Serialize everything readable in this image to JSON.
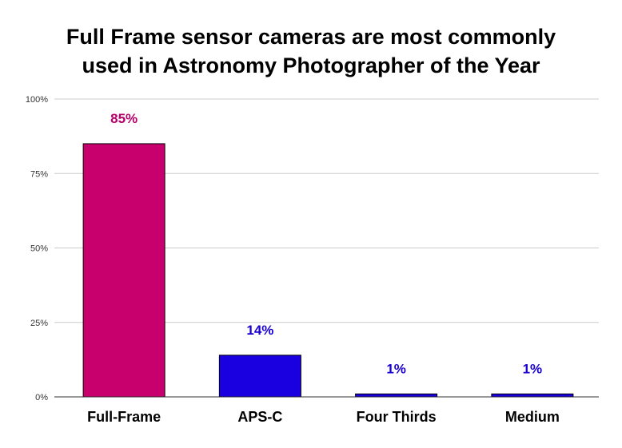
{
  "chart_data": {
    "type": "bar",
    "title_lines": [
      "Full Frame sensor cameras are most commonly",
      "used in Astronomy Photographer of the Year"
    ],
    "categories": [
      "Full-Frame",
      "APS-C",
      "Four Thirds",
      "Medium"
    ],
    "values": [
      85,
      14,
      1,
      1
    ],
    "data_labels": [
      "85%",
      "14%",
      "1%",
      "1%"
    ],
    "bar_colors": [
      "#c8006e",
      "#1a00e0",
      "#1a00e0",
      "#1a00e0"
    ],
    "label_colors": [
      "#b5006a",
      "#1a00d0",
      "#1a00d0",
      "#1a00d0"
    ],
    "ylim": [
      0,
      100
    ],
    "yticks": [
      0,
      25,
      50,
      75,
      100
    ],
    "ytick_labels": [
      "0%",
      "25%",
      "50%",
      "75%",
      "100%"
    ],
    "grid": true,
    "xlabel": "",
    "ylabel": ""
  }
}
